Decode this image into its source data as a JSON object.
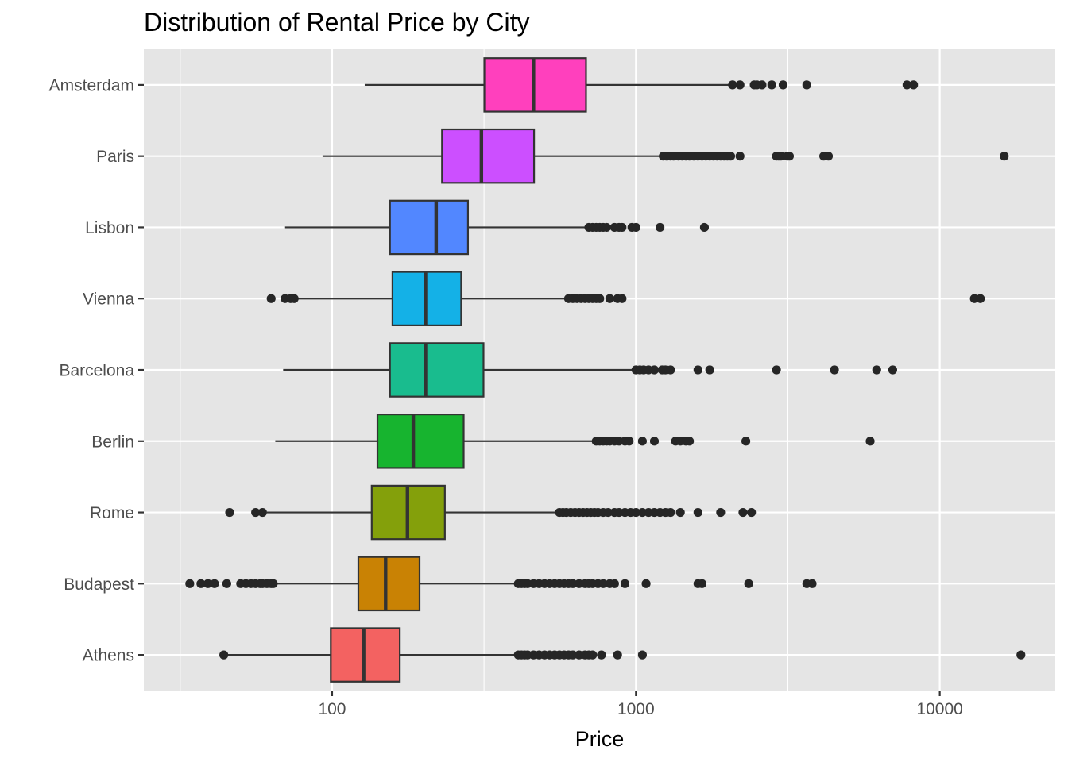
{
  "chart_data": {
    "type": "boxplot",
    "title": "Distribution of Rental Price by City",
    "xlabel": "Price",
    "ylabel": "",
    "x_scale": "log10",
    "xlim": [
      24,
      24000
    ],
    "x_ticks": [
      100,
      1000,
      10000
    ],
    "x_tick_labels": [
      "100",
      "1000",
      "10000"
    ],
    "grid": true,
    "legend": "none",
    "colors": {
      "panel_background": "#e5e5e5",
      "grid": "#ffffff",
      "outline": "#333333",
      "outlier": "#262626"
    },
    "series": [
      {
        "category": "Amsterdam",
        "color": "#ff40bd",
        "whisker_low": 128,
        "q1": 317,
        "median": 460,
        "q3": 685,
        "whisker_high": 2050,
        "outliers": [
          2080,
          2200,
          2450,
          2500,
          2600,
          2800,
          3050,
          3650,
          7800,
          8200
        ]
      },
      {
        "category": "Paris",
        "color": "#cc4fff",
        "whisker_low": 93,
        "q1": 230,
        "median": 310,
        "q3": 462,
        "whisker_high": 1200,
        "outliers": [
          1230,
          1260,
          1300,
          1330,
          1380,
          1420,
          1460,
          1500,
          1550,
          1600,
          1650,
          1700,
          1750,
          1800,
          1850,
          1900,
          1950,
          2000,
          2050,
          2200,
          2900,
          2950,
          3000,
          3150,
          3200,
          4150,
          4300,
          16300
        ]
      },
      {
        "category": "Lisbon",
        "color": "#5287ff",
        "whisker_low": 70,
        "q1": 155,
        "median": 220,
        "q3": 280,
        "whisker_high": 680,
        "outliers": [
          700,
          720,
          740,
          760,
          780,
          800,
          850,
          880,
          900,
          970,
          1000,
          1200,
          1680
        ]
      },
      {
        "category": "Vienna",
        "color": "#14b1e7",
        "whisker_low": 75,
        "q1": 158,
        "median": 203,
        "q3": 266,
        "whisker_high": 600,
        "outliers": [
          63,
          70,
          73,
          75,
          600,
          620,
          640,
          660,
          680,
          700,
          720,
          740,
          760,
          820,
          870,
          900,
          13000,
          13600
        ]
      },
      {
        "category": "Barcelona",
        "color": "#19bc8e",
        "whisker_low": 69,
        "q1": 155,
        "median": 203,
        "q3": 315,
        "whisker_high": 980,
        "outliers": [
          1000,
          1030,
          1060,
          1100,
          1150,
          1220,
          1250,
          1300,
          1600,
          1750,
          2900,
          4500,
          6200,
          7000
        ]
      },
      {
        "category": "Berlin",
        "color": "#17b42f",
        "whisker_low": 65,
        "q1": 141,
        "median": 185,
        "q3": 271,
        "whisker_high": 720,
        "outliers": [
          740,
          760,
          780,
          800,
          820,
          850,
          880,
          920,
          950,
          1050,
          1150,
          1350,
          1400,
          1460,
          1500,
          2300,
          5900
        ]
      },
      {
        "category": "Rome",
        "color": "#84a00b",
        "whisker_low": 61,
        "q1": 135,
        "median": 177,
        "q3": 235,
        "whisker_high": 550,
        "outliers": [
          46,
          56,
          59,
          560,
          575,
          590,
          610,
          630,
          650,
          670,
          690,
          710,
          730,
          750,
          780,
          810,
          850,
          880,
          920,
          960,
          1000,
          1050,
          1100,
          1150,
          1200,
          1250,
          1300,
          1400,
          1600,
          1900,
          2250,
          2400
        ]
      },
      {
        "category": "Budapest",
        "color": "#c98204",
        "whisker_low": 65,
        "q1": 122,
        "median": 150,
        "q3": 194,
        "whisker_high": 400,
        "outliers": [
          34,
          37,
          39,
          41,
          45,
          50,
          52,
          54,
          56,
          58,
          59,
          61,
          63,
          64,
          410,
          420,
          430,
          440,
          460,
          480,
          500,
          520,
          540,
          560,
          580,
          600,
          620,
          650,
          680,
          700,
          720,
          750,
          780,
          820,
          850,
          920,
          1080,
          1600,
          1650,
          2350,
          3650,
          3800
        ]
      },
      {
        "category": "Athens",
        "color": "#f36261",
        "whisker_low": 45,
        "q1": 99,
        "median": 127,
        "q3": 167,
        "whisker_high": 400,
        "outliers": [
          44,
          410,
          420,
          430,
          440,
          460,
          480,
          500,
          520,
          540,
          560,
          580,
          600,
          620,
          650,
          680,
          700,
          720,
          770,
          870,
          1050,
          18500
        ]
      }
    ]
  }
}
